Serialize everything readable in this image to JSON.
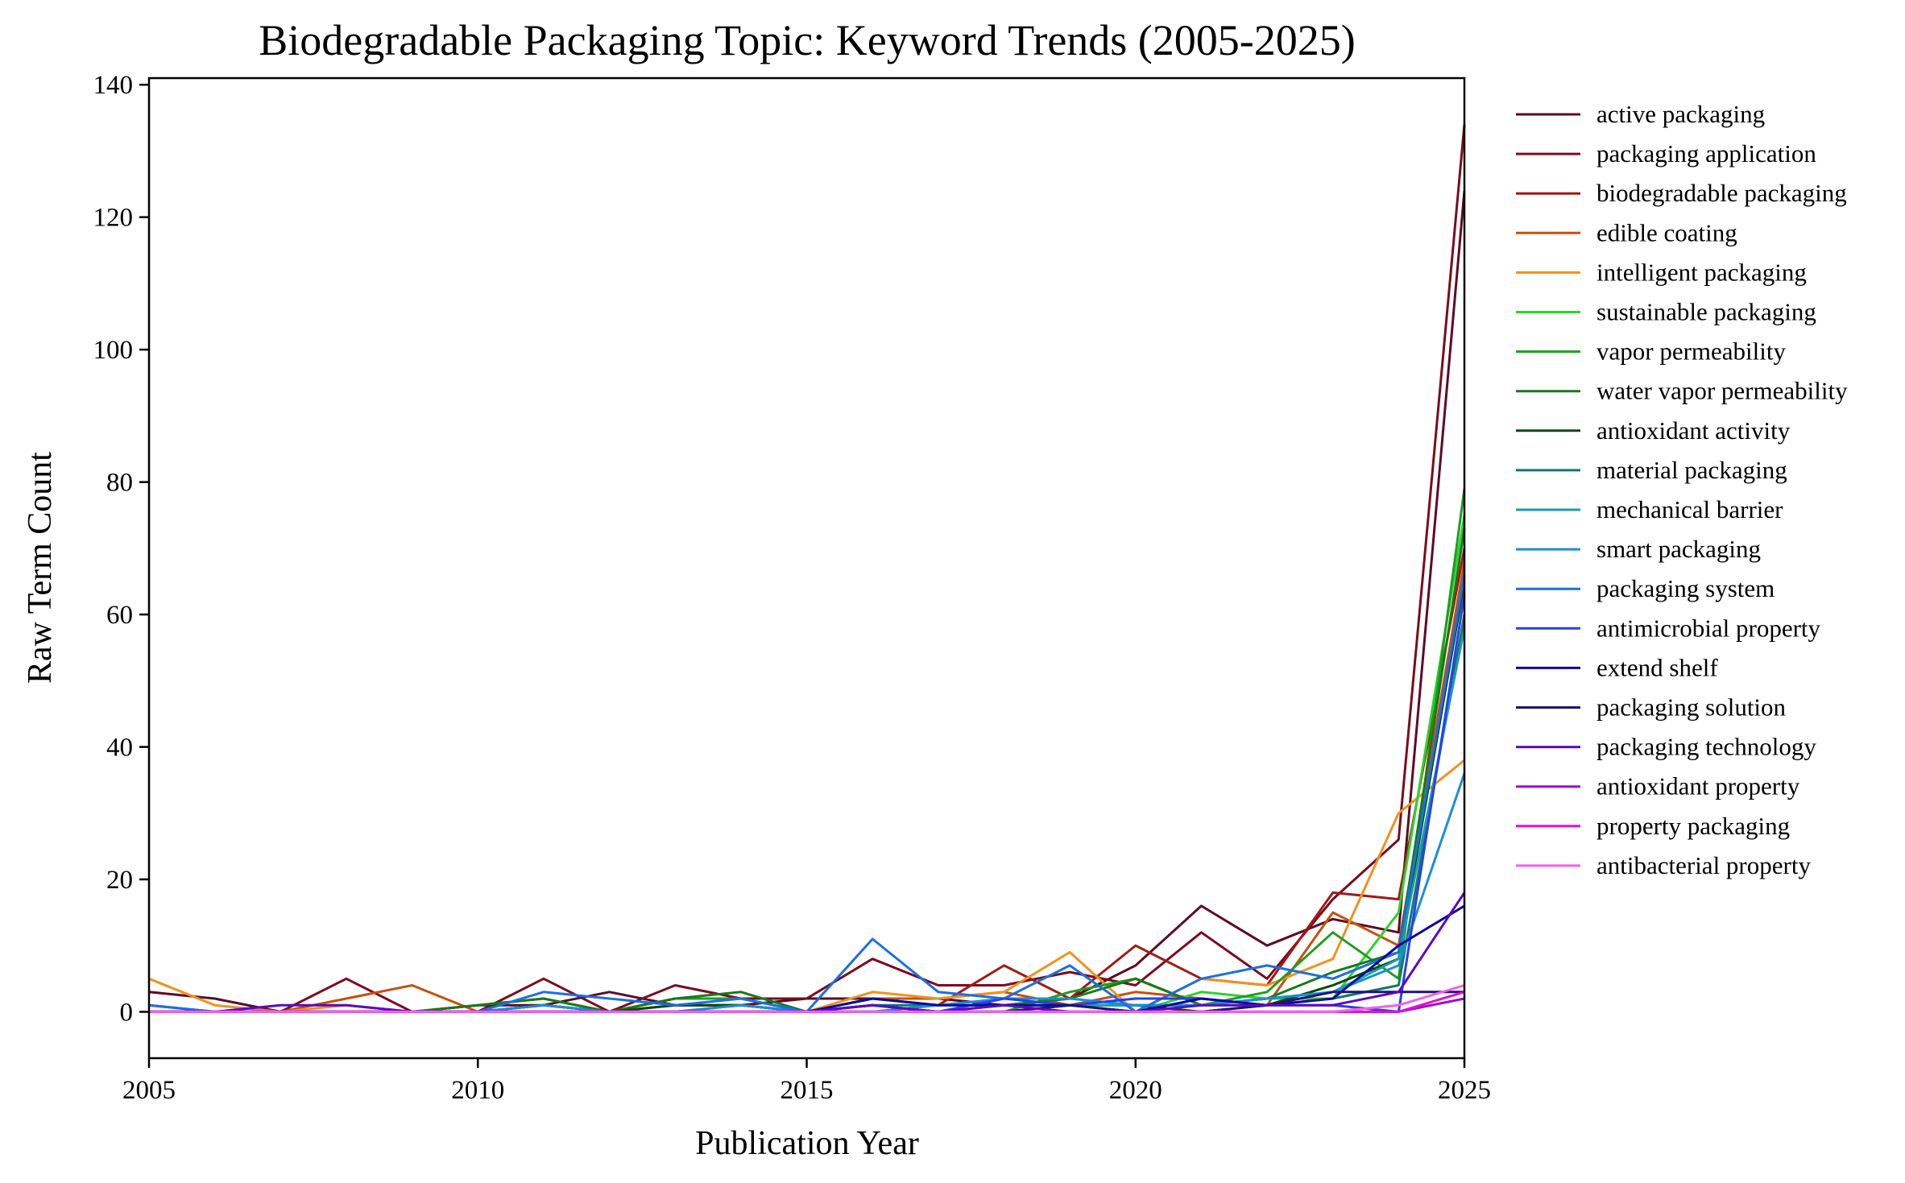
{
  "chart_data": {
    "type": "line",
    "title": "Biodegradable Packaging Topic: Keyword Trends (2005-2025)",
    "xlabel": "Publication Year",
    "ylabel": "Raw Term Count",
    "xlim": [
      2005,
      2025
    ],
    "ylim": [
      -7,
      141
    ],
    "xticks": [
      2005,
      2010,
      2015,
      2020,
      2025
    ],
    "yticks": [
      0,
      20,
      40,
      60,
      80,
      100,
      120,
      140
    ],
    "grid": false,
    "legend_position": "outside right",
    "x": [
      2005,
      2006,
      2007,
      2008,
      2009,
      2010,
      2011,
      2012,
      2013,
      2014,
      2015,
      2016,
      2017,
      2018,
      2019,
      2020,
      2021,
      2022,
      2023,
      2024,
      2025
    ],
    "series": [
      {
        "name": "active packaging",
        "color": "#5e0a24",
        "values": [
          3,
          2,
          0,
          0,
          0,
          1,
          1,
          3,
          1,
          1,
          2,
          2,
          2,
          1,
          2,
          7,
          16,
          10,
          14,
          12,
          124
        ]
      },
      {
        "name": "packaging application",
        "color": "#7c0a1e",
        "values": [
          0,
          0,
          0,
          5,
          0,
          0,
          5,
          0,
          4,
          2,
          2,
          8,
          4,
          4,
          6,
          4,
          12,
          5,
          17,
          26,
          134
        ]
      },
      {
        "name": "biodegradable packaging",
        "color": "#a11a15",
        "values": [
          0,
          0,
          0,
          0,
          0,
          0,
          1,
          0,
          1,
          1,
          0,
          2,
          1,
          7,
          2,
          10,
          5,
          4,
          18,
          17,
          70
        ]
      },
      {
        "name": "edible coating",
        "color": "#c4500f",
        "values": [
          1,
          0,
          0,
          2,
          4,
          0,
          0,
          0,
          0,
          0,
          0,
          2,
          2,
          3,
          1,
          3,
          2,
          1,
          15,
          10,
          68
        ]
      },
      {
        "name": "intelligent packaging",
        "color": "#f0921e",
        "values": [
          5,
          1,
          0,
          1,
          0,
          0,
          0,
          0,
          0,
          0,
          0,
          3,
          2,
          3,
          9,
          0,
          5,
          4,
          8,
          30,
          38
        ]
      },
      {
        "name": "sustainable packaging",
        "color": "#2bd42b",
        "values": [
          0,
          0,
          0,
          0,
          0,
          0,
          0,
          0,
          0,
          0,
          0,
          0,
          0,
          0,
          0,
          0,
          3,
          2,
          2,
          15,
          75
        ]
      },
      {
        "name": "vapor permeability",
        "color": "#1e9e1e",
        "values": [
          0,
          0,
          0,
          0,
          0,
          1,
          2,
          0,
          2,
          2,
          0,
          0,
          0,
          0,
          3,
          5,
          1,
          3,
          12,
          5,
          79
        ]
      },
      {
        "name": "water vapor permeability",
        "color": "#177a17",
        "values": [
          0,
          0,
          0,
          0,
          0,
          1,
          2,
          0,
          2,
          3,
          0,
          0,
          0,
          1,
          2,
          5,
          1,
          2,
          6,
          9,
          73
        ]
      },
      {
        "name": "antioxidant activity",
        "color": "#0d4a0d",
        "values": [
          0,
          0,
          0,
          0,
          0,
          0,
          1,
          0,
          1,
          1,
          0,
          0,
          0,
          0,
          1,
          1,
          0,
          1,
          4,
          8,
          65
        ]
      },
      {
        "name": "material packaging",
        "color": "#0e7a6a",
        "values": [
          0,
          0,
          0,
          0,
          0,
          0,
          0,
          0,
          0,
          1,
          0,
          1,
          1,
          1,
          1,
          1,
          1,
          1,
          2,
          4,
          60
        ]
      },
      {
        "name": "mechanical barrier",
        "color": "#1a9ea8",
        "values": [
          0,
          0,
          0,
          0,
          0,
          0,
          0,
          0,
          0,
          0,
          0,
          0,
          0,
          0,
          1,
          1,
          1,
          2,
          3,
          8,
          58
        ]
      },
      {
        "name": "smart packaging",
        "color": "#1a8fd8",
        "values": [
          1,
          0,
          0,
          0,
          0,
          0,
          1,
          0,
          0,
          1,
          0,
          0,
          1,
          2,
          2,
          1,
          1,
          2,
          3,
          7,
          36
        ]
      },
      {
        "name": "packaging system",
        "color": "#1a6fe6",
        "values": [
          1,
          0,
          0,
          0,
          0,
          0,
          3,
          2,
          1,
          2,
          0,
          11,
          3,
          2,
          7,
          0,
          5,
          7,
          5,
          9,
          66
        ]
      },
      {
        "name": "antimicrobial property",
        "color": "#2a3ef0",
        "values": [
          0,
          0,
          0,
          0,
          0,
          0,
          0,
          0,
          0,
          0,
          0,
          1,
          0,
          2,
          1,
          2,
          2,
          1,
          1,
          0,
          63
        ]
      },
      {
        "name": "extend shelf",
        "color": "#0a0a9e",
        "values": [
          0,
          0,
          0,
          0,
          0,
          0,
          0,
          0,
          0,
          0,
          0,
          2,
          1,
          1,
          1,
          0,
          2,
          1,
          2,
          10,
          16
        ]
      },
      {
        "name": "packaging solution",
        "color": "#22136e",
        "values": [
          0,
          0,
          0,
          0,
          0,
          0,
          0,
          0,
          0,
          0,
          0,
          1,
          0,
          0,
          1,
          0,
          0,
          1,
          3,
          3,
          3
        ]
      },
      {
        "name": "packaging technology",
        "color": "#5a0ac4",
        "values": [
          0,
          0,
          1,
          1,
          0,
          0,
          0,
          0,
          0,
          0,
          0,
          1,
          0,
          1,
          0,
          0,
          1,
          1,
          1,
          3,
          18
        ]
      },
      {
        "name": "antioxidant property",
        "color": "#a10ad4",
        "values": [
          0,
          0,
          0,
          0,
          0,
          0,
          0,
          0,
          0,
          0,
          0,
          0,
          0,
          0,
          0,
          0,
          0,
          0,
          0,
          0,
          2
        ]
      },
      {
        "name": "property packaging",
        "color": "#e010d0",
        "values": [
          0,
          0,
          0,
          0,
          0,
          0,
          0,
          0,
          0,
          0,
          0,
          0,
          0,
          0,
          0,
          0,
          0,
          0,
          0,
          0,
          3
        ]
      },
      {
        "name": "antibacterial property",
        "color": "#f560e8",
        "values": [
          0,
          0,
          0,
          0,
          0,
          0,
          0,
          0,
          0,
          0,
          0,
          0,
          0,
          0,
          0,
          0,
          0,
          0,
          0,
          1,
          4
        ]
      }
    ]
  }
}
